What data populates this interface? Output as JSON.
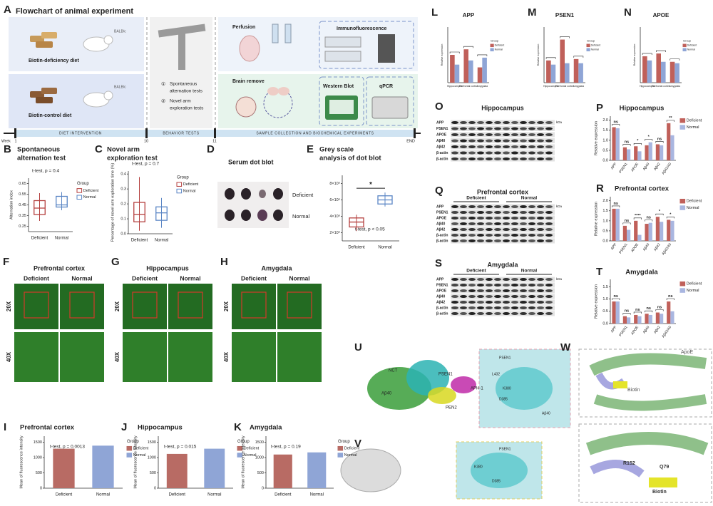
{
  "panel_A": {
    "letter": "A",
    "title": "Flowchart of animal experiment",
    "diet_deficient": "Biotin-deficiency diet",
    "diet_control": "Biotin-control diet",
    "strain": "BALB/c",
    "tests": [
      {
        "mark": "①",
        "lines": [
          "Spontaneous",
          "alternation tests"
        ]
      },
      {
        "mark": "②",
        "lines": [
          "Novel arm",
          "exploration tests"
        ]
      }
    ],
    "perfusion": "Perfusion",
    "immunofluorescence": "Immunofluorescence",
    "brain_remove": "Brain remove",
    "western_blot": "Western Blot",
    "qpcr": "qPCR",
    "timeline": {
      "week_label": "Week",
      "weeks": [
        "1",
        "10",
        "11",
        "END"
      ],
      "phases": [
        "DIET INTERVENTION",
        "BEHAVIOR TESTS",
        "SAMPLE COLLECTION AND BIOCHEMICAL EXPERIMENTS"
      ]
    }
  },
  "panel_D": {
    "letter": "D",
    "title": "Serum dot blot",
    "rows": [
      "Deficient",
      "Normal"
    ]
  },
  "fluorescence": [
    {
      "letter": "F",
      "title": "Prefrontal cortex",
      "columns": [
        "Deficient",
        "Normal"
      ],
      "rows": [
        "20X",
        "40X"
      ]
    },
    {
      "letter": "G",
      "title": "Hippocampus",
      "columns": [
        "Deficient",
        "Normal"
      ],
      "rows": [
        "20X",
        "40X"
      ]
    },
    {
      "letter": "H",
      "title": "Amygdala",
      "columns": [
        "Deficient",
        "Normal"
      ],
      "rows": [
        "20X",
        "40X"
      ]
    }
  ],
  "blots": [
    {
      "letter": "O",
      "title": "Hippocampus",
      "unit": "kDa",
      "bands": [
        "APP",
        "PSEN1",
        "APOE",
        "Aβ40",
        "Aβ42",
        "β-actin",
        "β-actin"
      ]
    },
    {
      "letter": "Q",
      "title": "Prefrontal cortex",
      "groups": [
        "Deficient",
        "Normal"
      ],
      "unit": "kDa",
      "bands": [
        "APP",
        "PSEN1",
        "APOE",
        "Aβ40",
        "Aβ42",
        "β-actin",
        "β-actin"
      ]
    },
    {
      "letter": "S",
      "title": "Amygdala",
      "groups": [
        "Deficient",
        "Normal"
      ],
      "unit": "kDa",
      "bands": [
        "APP",
        "PSEN1",
        "APOE",
        "Aβ40",
        "Aβ42",
        "β-actin",
        "β-actin"
      ]
    }
  ],
  "structures": [
    {
      "letter": "U",
      "labels": [
        "NCT",
        "PSEN1",
        "APH-1",
        "PEN2",
        "Aβ40"
      ],
      "zoom_labels": [
        "PSEN1",
        "L432",
        "K380",
        "D385",
        "Aβ40"
      ]
    },
    {
      "letter": "V",
      "zoom_labels": [
        "PSEN1",
        "K380",
        "D385"
      ]
    },
    {
      "letter": "W",
      "labels": [
        "ApoE",
        "Biotin"
      ],
      "zoom_labels": [
        "R152",
        "Q79",
        "Biotin"
      ]
    }
  ],
  "chart_data": [
    {
      "letter": "B",
      "type": "box",
      "title": [
        "Spontaneous",
        "alternation test"
      ],
      "annotation": "t-test, p = 0.4",
      "ylabel": "Alternation index",
      "legend_title": "Group",
      "ylim": [
        0.2,
        0.7
      ],
      "yticks": [
        0.25,
        0.35,
        0.45,
        0.55,
        0.65
      ],
      "boxes": [
        {
          "name": "Deficient",
          "color": "#b5403f",
          "min": 0.3,
          "q1": 0.36,
          "median": 0.42,
          "q3": 0.49,
          "max": 0.56
        },
        {
          "name": "Normal",
          "color": "#5b86c5",
          "min": 0.4,
          "q1": 0.43,
          "median": 0.45,
          "q3": 0.53,
          "max": 0.57
        }
      ]
    },
    {
      "letter": "C",
      "type": "box",
      "title": [
        "Novel arm",
        "exploration test"
      ],
      "annotation": "t-test, p = 0.7",
      "ylabel": "Percentage of novel arm exploration time (%)",
      "legend_title": "Group",
      "ylim": [
        0,
        0.42
      ],
      "yticks": [
        {
          "value": 0,
          "label": "0.0"
        },
        0.1,
        0.2,
        0.3,
        0.4
      ],
      "boxes": [
        {
          "name": "Deficient",
          "color": "#b5403f",
          "min": 0.02,
          "q1": 0.08,
          "median": 0.13,
          "q3": 0.21,
          "max": 0.38
        },
        {
          "name": "Normal",
          "color": "#5b86c5",
          "min": 0.04,
          "q1": 0.09,
          "median": 0.14,
          "q3": 0.18,
          "max": 0.24
        }
      ]
    },
    {
      "letter": "E",
      "type": "box",
      "title": [
        "Grey scale",
        "analysis of dot blot"
      ],
      "annotation": "t-test, p < 0.05",
      "significance": "*",
      "ylim": [
        1000000,
        9000000
      ],
      "yticks": [
        {
          "value": 2000000,
          "label": "2×10⁶"
        },
        {
          "value": 4000000,
          "label": "4×10⁶"
        },
        {
          "value": 6000000,
          "label": "6×10⁶"
        },
        {
          "value": 8000000,
          "label": "8×10⁶"
        }
      ],
      "boxes": [
        {
          "name": "Deficient",
          "color": "#b5403f",
          "min": 2200000,
          "q1": 2700000,
          "median": 3300000,
          "q3": 3800000,
          "max": 4200000
        },
        {
          "name": "Normal",
          "color": "#5b86c5",
          "min": 5200000,
          "q1": 5500000,
          "median": 6000000,
          "q3": 6500000,
          "max": 6900000
        }
      ]
    },
    {
      "letter": "I",
      "type": "bar",
      "title": "Prefrontal cortex",
      "annotation": "t-test, p = 0.0013",
      "ylabel": "Mean of fluorescence intensity",
      "legend_title": "Group",
      "categories": [
        "Deficient",
        "Normal"
      ],
      "values": [
        1290,
        1390
      ],
      "colors": [
        "#b86b64",
        "#8fa5d6"
      ],
      "ylim": [
        0,
        1700
      ],
      "yticks": [
        0,
        500,
        1000,
        1500
      ]
    },
    {
      "letter": "J",
      "type": "bar",
      "title": "Hippocampus",
      "annotation": "t-test, p = 0.015",
      "ylabel": "Mean of fluorescence intensity",
      "legend_title": "Group",
      "categories": [
        "Deficient",
        "Normal"
      ],
      "values": [
        1120,
        1290
      ],
      "colors": [
        "#b86b64",
        "#8fa5d6"
      ],
      "ylim": [
        0,
        1700
      ],
      "yticks": [
        0,
        500,
        1000,
        1500
      ]
    },
    {
      "letter": "K",
      "type": "bar",
      "title": "Amygdala",
      "annotation": "t-test, p = 0.19",
      "ylabel": "Mean of fluorescence intensity",
      "legend_title": "Group",
      "categories": [
        "Deficient",
        "Normal"
      ],
      "values": [
        1100,
        1170
      ],
      "colors": [
        "#b86b64",
        "#8fa5d6"
      ],
      "ylim": [
        0,
        1700
      ],
      "yticks": [
        0,
        500,
        1000,
        1500
      ]
    },
    {
      "letter": "L",
      "type": "grouped_bar",
      "title": "APP",
      "ylabel": "Relative expression",
      "legend_title": "Group",
      "ylim": [
        0,
        2
      ],
      "categories": [
        "Hippocampus",
        "Prefrontal cortex",
        "Amygdala"
      ],
      "series": [
        {
          "name": "Deficient",
          "color": "#c0605a",
          "values": [
            1.0,
            1.2,
            0.55
          ]
        },
        {
          "name": "Normal",
          "color": "#8fa5d6",
          "values": [
            0.65,
            0.8,
            0.9
          ]
        }
      ]
    },
    {
      "letter": "M",
      "type": "grouped_bar",
      "title": "PSEN1",
      "ylabel": "Relative expression",
      "legend_title": "Group",
      "ylim": [
        0,
        2
      ],
      "categories": [
        "Hippocampus",
        "Prefrontal cortex",
        "Amygdala"
      ],
      "series": [
        {
          "name": "Deficient",
          "color": "#c0605a",
          "values": [
            0.8,
            1.55,
            0.85
          ]
        },
        {
          "name": "Normal",
          "color": "#8fa5d6",
          "values": [
            0.65,
            0.7,
            0.7
          ]
        }
      ]
    },
    {
      "letter": "N",
      "type": "grouped_bar",
      "title": "APOE",
      "ylabel": "Relative expression",
      "legend_title": "Group",
      "ylim": [
        0,
        2
      ],
      "categories": [
        "Hippocampus",
        "Prefrontal cortex",
        "Amygdala"
      ],
      "series": [
        {
          "name": "Deficient",
          "color": "#c0605a",
          "values": [
            0.95,
            1.05,
            0.75
          ]
        },
        {
          "name": "Normal",
          "color": "#8fa5d6",
          "values": [
            0.8,
            0.75,
            0.7
          ]
        }
      ]
    },
    {
      "letter": "P",
      "type": "grouped_bar",
      "title": "Hippocampus",
      "ylabel": "Relative expression",
      "ylim": [
        0,
        2.2
      ],
      "yticks": [
        {
          "value": 0,
          "label": "0.0"
        },
        0.5,
        {
          "value": 1,
          "label": "1.0"
        },
        1.5,
        {
          "value": 2,
          "label": "2.0"
        }
      ],
      "categories": [
        "APP",
        "PSEN1",
        "APOE",
        "Aβ40",
        "Aβ42",
        "Aβ42/40"
      ],
      "significance": [
        "ns",
        "ns",
        "*",
        "*",
        "ns",
        "**"
      ],
      "series": [
        {
          "name": "Deficient",
          "color": "#c0605a",
          "values": [
            1.65,
            0.65,
            0.7,
            0.75,
            0.8,
            1.85
          ]
        },
        {
          "name": "Normal",
          "color": "#a9b6e0",
          "values": [
            1.6,
            0.55,
            0.45,
            0.9,
            0.75,
            1.25
          ]
        }
      ]
    },
    {
      "letter": "R",
      "type": "grouped_bar",
      "title": "Prefrontal cortex",
      "ylabel": "Relative expression",
      "ylim": [
        0,
        2.2
      ],
      "yticks": [
        {
          "value": 0,
          "label": "0.0"
        },
        0.5,
        {
          "value": 1,
          "label": "1.0"
        },
        1.5,
        {
          "value": 2,
          "label": "2.0"
        }
      ],
      "categories": [
        "APP",
        "PSEN1",
        "APOE",
        "Aβ40",
        "Aβ42",
        "Aβ42/40"
      ],
      "significance": [
        "ns",
        "ns",
        "****",
        "ns",
        "*",
        "*"
      ],
      "series": [
        {
          "name": "Deficient",
          "color": "#c0605a",
          "values": [
            1.6,
            0.75,
            1.0,
            0.85,
            1.2,
            1.05
          ]
        },
        {
          "name": "Normal",
          "color": "#a9b6e0",
          "values": [
            1.6,
            0.55,
            0.3,
            0.9,
            0.95,
            1.0
          ]
        }
      ]
    },
    {
      "letter": "T",
      "type": "grouped_bar",
      "title": "Amygdala",
      "ylabel": "Relative expression",
      "ylim": [
        0,
        1.8
      ],
      "yticks": [
        {
          "value": 0,
          "label": "0.0"
        },
        0.5,
        {
          "value": 1,
          "label": "1.0"
        },
        1.5
      ],
      "categories": [
        "APP",
        "PSEN1",
        "APOE",
        "Aβ40",
        "Aβ42",
        "Aβ42/40"
      ],
      "significance": [
        "ns",
        "ns",
        "ns",
        "ns",
        "ns",
        "ns"
      ],
      "series": [
        {
          "name": "Deficient",
          "color": "#c0605a",
          "values": [
            0.9,
            0.3,
            0.35,
            0.4,
            0.45,
            0.9
          ]
        },
        {
          "name": "Normal",
          "color": "#a9b6e0",
          "values": [
            0.9,
            0.25,
            0.3,
            0.35,
            0.4,
            0.5
          ]
        }
      ]
    }
  ]
}
